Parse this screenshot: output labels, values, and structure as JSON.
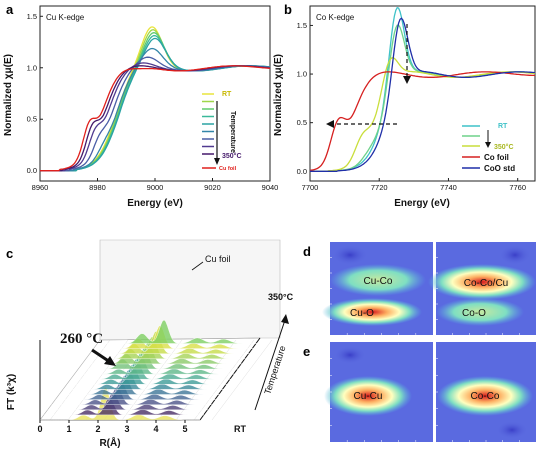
{
  "panel_labels": [
    "a",
    "b",
    "c",
    "d",
    "e"
  ],
  "chart_data": [
    {
      "panel": "a",
      "type": "line",
      "title": "Cu K-edge",
      "xlabel": "Energy (eV)",
      "ylabel": "Normalized χμ(E)",
      "xlim": [
        8960,
        9040
      ],
      "ylim": [
        -0.1,
        1.6
      ],
      "xticks": [
        "8960",
        "8980",
        "9000",
        "9020",
        "9040"
      ],
      "yticks": [
        "0.0",
        "0.5",
        "1.0",
        "1.5"
      ],
      "legend": {
        "position": "center-right",
        "entries": [
          "RT",
          "Temperature",
          "350°C",
          "Cu foil"
        ],
        "arrow": "Temperature"
      },
      "series": [
        {
          "name": "RT",
          "color": "#e8e43c",
          "edge": 8986,
          "peak": 1.27,
          "pre": 0.0
        },
        {
          "color": "#9fd64a",
          "edge": 8986.3,
          "peak": 1.25,
          "pre": 0.0
        },
        {
          "color": "#5fca6e",
          "edge": 8986.6,
          "peak": 1.23,
          "pre": 0.0
        },
        {
          "color": "#3bb99a",
          "edge": 8986.8,
          "peak": 1.21,
          "pre": 0.0
        },
        {
          "color": "#2aa3a3",
          "edge": 8987,
          "peak": 1.19,
          "pre": 0.0
        },
        {
          "color": "#3486a8",
          "edge": 8986,
          "peak": 1.12,
          "pre": 0.05
        },
        {
          "color": "#4a5ea6",
          "edge": 8984.5,
          "peak": 1.06,
          "pre": 0.12
        },
        {
          "color": "#503a90",
          "edge": 8983,
          "peak": 1.02,
          "pre": 0.18
        },
        {
          "name": "350°C",
          "color": "#44196a",
          "edge": 8982,
          "peak": 1.0,
          "pre": 0.22
        },
        {
          "name": "Cu foil",
          "color": "#e0201c",
          "edge": 8981,
          "peak": 0.98,
          "pre": 0.25
        }
      ]
    },
    {
      "panel": "b",
      "type": "line",
      "title": "Co K-edge",
      "xlabel": "Energy (eV)",
      "ylabel": "Normalized χμ(E)",
      "xlim": [
        7700,
        7765
      ],
      "ylim": [
        -0.1,
        1.7
      ],
      "xticks": [
        "7700",
        "7720",
        "7740",
        "7760"
      ],
      "yticks": [
        "0.0",
        "0.5",
        "1.0",
        "1.5"
      ],
      "legend": {
        "position": "center-right",
        "entries": [
          "RT",
          "350°C",
          "Co foil",
          "CoO std"
        ]
      },
      "series": [
        {
          "name": "RT",
          "color": "#3fc2c8",
          "edge": 7721,
          "peak": 1.58,
          "pre": 0.0
        },
        {
          "color": "#6ed28a",
          "edge": 7721,
          "peak": 1.45,
          "pre": 0.05
        },
        {
          "name": "350°C",
          "color": "#c9de3b",
          "edge": 7719,
          "peak": 1.2,
          "pre": 0.2
        },
        {
          "name": "Co foil",
          "color": "#d62020",
          "edge": 7712,
          "peak": 1.0,
          "pre": 0.35
        },
        {
          "name": "CoO std",
          "color": "#1f2fa8",
          "edge": 7722,
          "peak": 1.5,
          "pre": 0.0
        }
      ]
    },
    {
      "panel": "c",
      "type": "area",
      "xlabel": "R(Å)",
      "ylabel": "FT (k³χ)",
      "xticks": [
        "0",
        "1",
        "2",
        "3",
        "4",
        "5"
      ],
      "annotations": [
        "260 °C",
        "Cu foil",
        "350°C",
        "RT",
        "Temperature"
      ],
      "n_slices": 16
    },
    {
      "panel": "d",
      "type": "heatmap",
      "labels": [
        "Cu-Co",
        "Cu-O",
        "Co-Co/Cu",
        "Co-O"
      ]
    },
    {
      "panel": "e",
      "type": "heatmap",
      "labels": [
        "Cu-Cu",
        "Co-Co"
      ]
    }
  ]
}
